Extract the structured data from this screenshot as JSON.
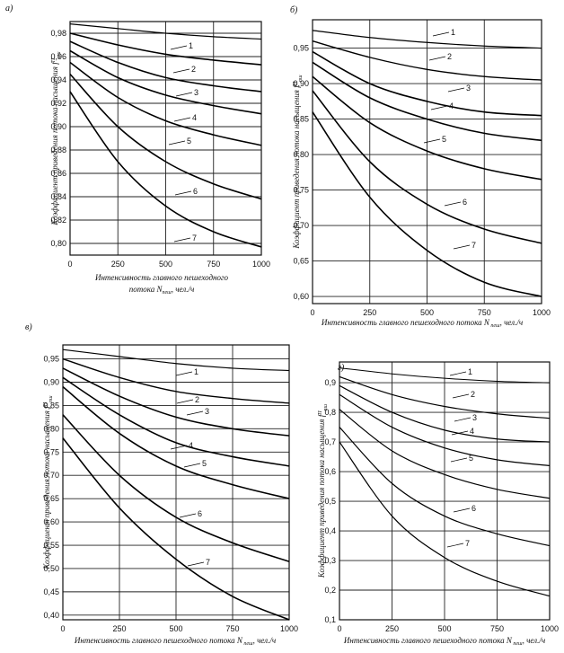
{
  "chart_data": [
    {
      "type": "line",
      "panel_label": "а)",
      "ylabel": "Коэффициент приведения потока насыщения f",
      "ylabel_sub": "пш",
      "ylabel_sup": "П",
      "xlabel_line1": "Интенсивность главного пешеходного",
      "xlabel_line2": "потока N",
      "xlabel_sub": "пеш",
      "xlabel_unit": ", чел./ч",
      "xlim": [
        0,
        1000
      ],
      "ylim": [
        0.79,
        0.99
      ],
      "x_ticks": [
        0,
        250,
        500,
        750,
        1000
      ],
      "y_ticks": [
        0.8,
        0.82,
        0.84,
        0.86,
        0.88,
        0.9,
        0.92,
        0.94,
        0.96,
        0.98
      ],
      "y_tick_labels": [
        "0,80",
        "0,82",
        "0,84",
        "0,86",
        "0,88",
        "0,90",
        "0,92",
        "0,94",
        "0,96",
        "0,98"
      ],
      "x_tick_labels": [
        "0",
        "250",
        "500",
        "750",
        "1000"
      ],
      "series": [
        {
          "name": "1",
          "x": [
            0,
            250,
            500,
            750,
            1000
          ],
          "y": [
            0.988,
            0.984,
            0.98,
            0.977,
            0.975
          ]
        },
        {
          "name": "2",
          "x": [
            0,
            250,
            500,
            750,
            1000
          ],
          "y": [
            0.98,
            0.97,
            0.962,
            0.957,
            0.953
          ]
        },
        {
          "name": "3",
          "x": [
            0,
            250,
            500,
            750,
            1000
          ],
          "y": [
            0.973,
            0.955,
            0.942,
            0.935,
            0.93
          ]
        },
        {
          "name": "4",
          "x": [
            0,
            250,
            500,
            750,
            1000
          ],
          "y": [
            0.965,
            0.942,
            0.927,
            0.918,
            0.911
          ]
        },
        {
          "name": "5",
          "x": [
            0,
            250,
            500,
            750,
            1000
          ],
          "y": [
            0.955,
            0.925,
            0.905,
            0.893,
            0.884
          ]
        },
        {
          "name": "6",
          "x": [
            0,
            250,
            500,
            750,
            1000
          ],
          "y": [
            0.945,
            0.9,
            0.87,
            0.851,
            0.838
          ]
        },
        {
          "name": "7",
          "x": [
            0,
            250,
            500,
            750,
            1000
          ],
          "y": [
            0.93,
            0.87,
            0.832,
            0.81,
            0.797
          ]
        }
      ]
    },
    {
      "type": "line",
      "panel_label": "б)",
      "ylabel": "Коэффициент приведения потока насыщения f",
      "ylabel_sub": "пш",
      "ylabel_sup": "П",
      "xlabel_line1": "Интенсивность главного пешеходного потока N",
      "xlabel_line2": "",
      "xlabel_sub": "пеш",
      "xlabel_unit": ", чел./ч",
      "xlim": [
        0,
        1000
      ],
      "ylim": [
        0.59,
        0.99
      ],
      "x_ticks": [
        0,
        250,
        500,
        750,
        1000
      ],
      "y_ticks": [
        0.6,
        0.65,
        0.7,
        0.75,
        0.8,
        0.85,
        0.9,
        0.95
      ],
      "y_tick_labels": [
        "0,60",
        "0,65",
        "0,70",
        "0,75",
        "0,80",
        "0,85",
        "0,90",
        "0,95"
      ],
      "x_tick_labels": [
        "0",
        "250",
        "500",
        "750",
        "1000"
      ],
      "series": [
        {
          "name": "1",
          "x": [
            0,
            250,
            500,
            750,
            1000
          ],
          "y": [
            0.975,
            0.965,
            0.958,
            0.953,
            0.95
          ]
        },
        {
          "name": "2",
          "x": [
            0,
            250,
            500,
            750,
            1000
          ],
          "y": [
            0.96,
            0.937,
            0.92,
            0.91,
            0.905
          ]
        },
        {
          "name": "3",
          "x": [
            0,
            250,
            500,
            750,
            1000
          ],
          "y": [
            0.945,
            0.9,
            0.875,
            0.86,
            0.855
          ]
        },
        {
          "name": "4",
          "x": [
            0,
            250,
            500,
            750,
            1000
          ],
          "y": [
            0.93,
            0.88,
            0.85,
            0.83,
            0.82
          ]
        },
        {
          "name": "5",
          "x": [
            0,
            250,
            500,
            750,
            1000
          ],
          "y": [
            0.91,
            0.845,
            0.805,
            0.78,
            0.765
          ]
        },
        {
          "name": "6",
          "x": [
            0,
            250,
            500,
            750,
            1000
          ],
          "y": [
            0.89,
            0.79,
            0.73,
            0.695,
            0.675
          ]
        },
        {
          "name": "7",
          "x": [
            0,
            250,
            500,
            750,
            1000
          ],
          "y": [
            0.86,
            0.74,
            0.665,
            0.62,
            0.6
          ]
        }
      ]
    },
    {
      "type": "line",
      "panel_label": "в)",
      "ylabel": "Коэффициент приведения потока насыщения f",
      "ylabel_sub": "пш",
      "ylabel_sup": "П",
      "xlabel_line1": "Интенсивность главного пешеходного потока N",
      "xlabel_line2": "",
      "xlabel_sub": "пеш",
      "xlabel_unit": ", чел./ч",
      "xlim": [
        0,
        1000
      ],
      "ylim": [
        0.39,
        0.98
      ],
      "x_ticks": [
        0,
        250,
        500,
        750,
        1000
      ],
      "y_ticks": [
        0.4,
        0.45,
        0.5,
        0.55,
        0.6,
        0.65,
        0.7,
        0.75,
        0.8,
        0.85,
        0.9,
        0.95
      ],
      "y_tick_labels": [
        "0,40",
        "0,45",
        "0,50",
        "0,55",
        "0,60",
        "0,65",
        "0,70",
        "0,75",
        "0,80",
        "0,85",
        "0,90",
        "0,95"
      ],
      "x_tick_labels": [
        "0",
        "250",
        "500",
        "750",
        "1000"
      ],
      "series": [
        {
          "name": "1",
          "x": [
            0,
            250,
            500,
            750,
            1000
          ],
          "y": [
            0.97,
            0.955,
            0.94,
            0.93,
            0.925
          ]
        },
        {
          "name": "2",
          "x": [
            0,
            250,
            500,
            750,
            1000
          ],
          "y": [
            0.95,
            0.91,
            0.88,
            0.865,
            0.855
          ]
        },
        {
          "name": "3",
          "x": [
            0,
            250,
            500,
            750,
            1000
          ],
          "y": [
            0.93,
            0.87,
            0.825,
            0.8,
            0.785
          ]
        },
        {
          "name": "4",
          "x": [
            0,
            250,
            500,
            750,
            1000
          ],
          "y": [
            0.91,
            0.83,
            0.77,
            0.74,
            0.72
          ]
        },
        {
          "name": "5",
          "x": [
            0,
            250,
            500,
            750,
            1000
          ],
          "y": [
            0.89,
            0.79,
            0.72,
            0.68,
            0.65
          ]
        },
        {
          "name": "6",
          "x": [
            0,
            250,
            500,
            750,
            1000
          ],
          "y": [
            0.83,
            0.7,
            0.61,
            0.555,
            0.515
          ]
        },
        {
          "name": "7",
          "x": [
            0,
            250,
            500,
            750,
            1000
          ],
          "y": [
            0.78,
            0.63,
            0.52,
            0.44,
            0.39
          ]
        }
      ]
    },
    {
      "type": "line",
      "panel_label": "г)",
      "ylabel": "Коэффициент приведения потока насыщения f",
      "ylabel_sub": "пш",
      "ylabel_sup": "П",
      "xlabel_line1": "Интенсивность главного пешеходного потока N",
      "xlabel_line2": "",
      "xlabel_sub": "пеш",
      "xlabel_unit": ", чел./ч",
      "xlim": [
        0,
        1000
      ],
      "ylim": [
        0.1,
        0.97
      ],
      "x_ticks": [
        0,
        250,
        500,
        750,
        1000
      ],
      "y_ticks": [
        0.1,
        0.2,
        0.3,
        0.4,
        0.5,
        0.6,
        0.7,
        0.8,
        0.9
      ],
      "y_tick_labels": [
        "0,1",
        "0,2",
        "0,3",
        "0,4",
        "0,5",
        "0,6",
        "0,7",
        "0,8",
        "0,9"
      ],
      "x_tick_labels": [
        "0",
        "250",
        "500",
        "750",
        "1000"
      ],
      "series": [
        {
          "name": "1",
          "x": [
            0,
            250,
            500,
            750,
            1000
          ],
          "y": [
            0.95,
            0.93,
            0.915,
            0.905,
            0.9
          ]
        },
        {
          "name": "2",
          "x": [
            0,
            250,
            500,
            750,
            1000
          ],
          "y": [
            0.92,
            0.86,
            0.82,
            0.795,
            0.78
          ]
        },
        {
          "name": "3",
          "x": [
            0,
            250,
            500,
            750,
            1000
          ],
          "y": [
            0.89,
            0.8,
            0.74,
            0.71,
            0.7
          ]
        },
        {
          "name": "4",
          "x": [
            0,
            250,
            500,
            750,
            1000
          ],
          "y": [
            0.86,
            0.75,
            0.68,
            0.64,
            0.62
          ]
        },
        {
          "name": "5",
          "x": [
            0,
            250,
            500,
            750,
            1000
          ],
          "y": [
            0.81,
            0.67,
            0.59,
            0.54,
            0.51
          ]
        },
        {
          "name": "6",
          "x": [
            0,
            250,
            500,
            750,
            1000
          ],
          "y": [
            0.75,
            0.56,
            0.45,
            0.39,
            0.35
          ]
        },
        {
          "name": "7",
          "x": [
            0,
            250,
            500,
            750,
            1000
          ],
          "y": [
            0.7,
            0.45,
            0.31,
            0.23,
            0.18
          ]
        }
      ]
    }
  ]
}
